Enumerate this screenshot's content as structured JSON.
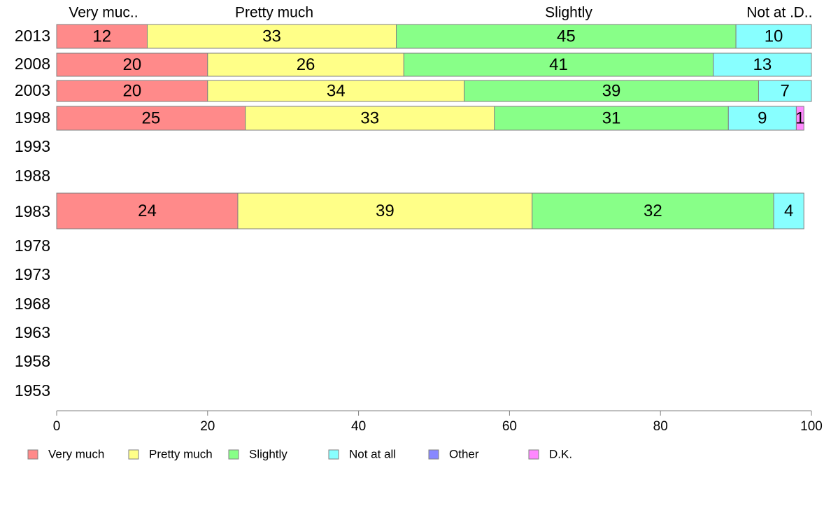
{
  "chart_data": {
    "type": "bar",
    "orientation": "horizontal-stacked",
    "categories": [
      "2013",
      "2008",
      "2003",
      "1998",
      "1993",
      "1988",
      "1983",
      "1978",
      "1973",
      "1968",
      "1963",
      "1958",
      "1953"
    ],
    "series": [
      {
        "name": "Very much",
        "color": "#ff8a8a",
        "values": [
          12,
          20,
          20,
          25,
          null,
          null,
          24,
          null,
          null,
          null,
          null,
          null,
          null
        ]
      },
      {
        "name": "Pretty much",
        "color": "#ffff88",
        "values": [
          33,
          26,
          34,
          33,
          null,
          null,
          39,
          null,
          null,
          null,
          null,
          null,
          null
        ]
      },
      {
        "name": "Slightly",
        "color": "#88ff88",
        "values": [
          45,
          41,
          39,
          31,
          null,
          null,
          32,
          null,
          null,
          null,
          null,
          null,
          null
        ]
      },
      {
        "name": "Not at all",
        "color": "#88ffff",
        "values": [
          10,
          13,
          7,
          9,
          null,
          null,
          4,
          null,
          null,
          null,
          null,
          null,
          null
        ]
      },
      {
        "name": "Other",
        "color": "#8888ff",
        "values": [
          0,
          0,
          0,
          0,
          null,
          null,
          0,
          null,
          null,
          null,
          null,
          null,
          null
        ]
      },
      {
        "name": "D.K.",
        "color": "#ff88ff",
        "values": [
          0,
          0,
          0,
          1,
          null,
          null,
          0,
          null,
          null,
          null,
          null,
          null,
          null
        ]
      }
    ],
    "column_headers": [
      "Very muc..",
      "Pretty much",
      "Slightly",
      "Not at ..",
      "D.."
    ],
    "x_ticks": [
      "0",
      "20",
      "40",
      "60",
      "80",
      "100"
    ],
    "xlim": [
      0,
      100
    ],
    "grid": false,
    "legend_position": "bottom"
  }
}
